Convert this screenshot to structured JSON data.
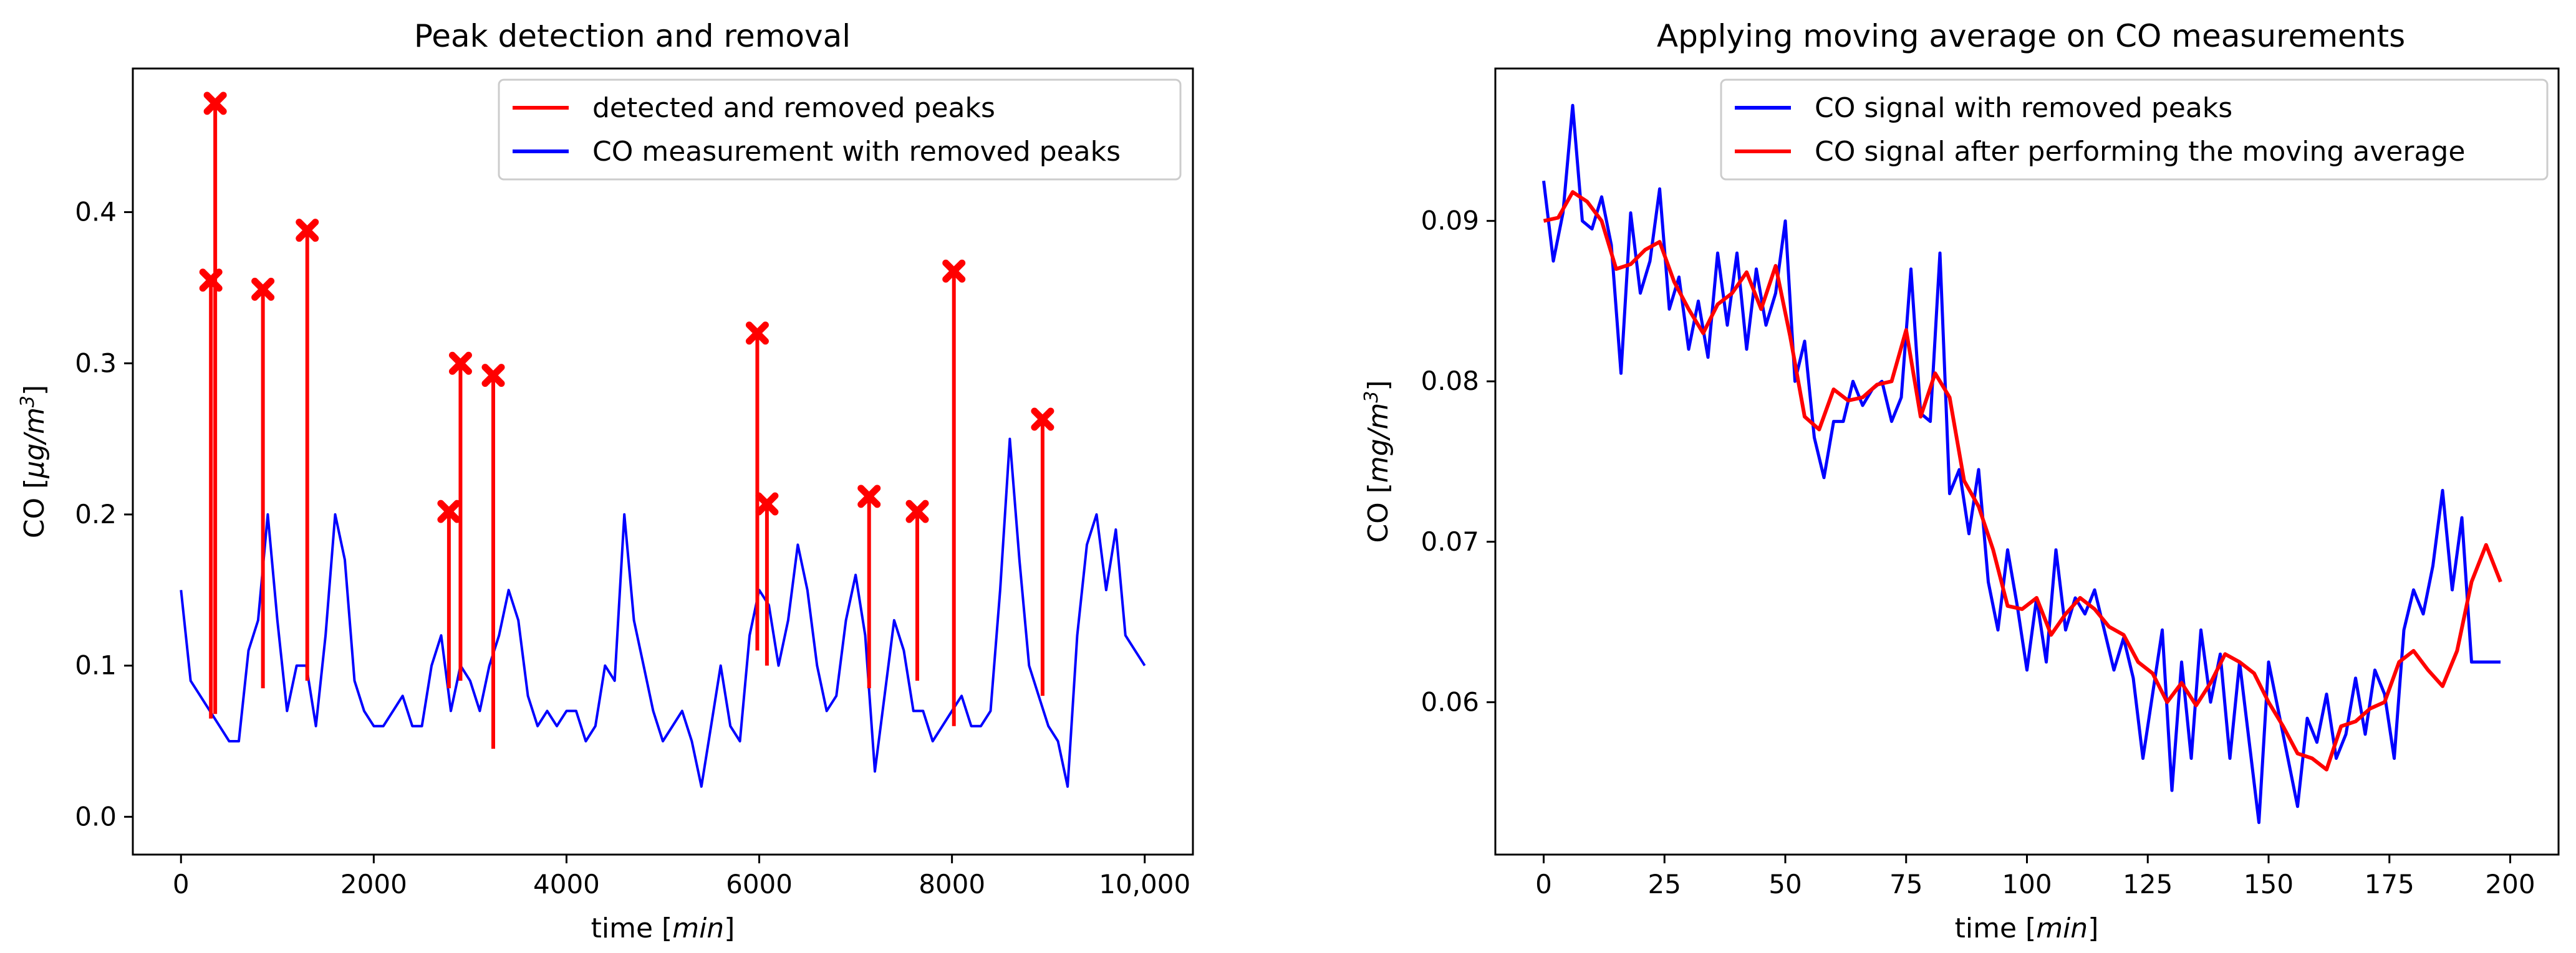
{
  "chart_data": [
    {
      "type": "line",
      "title": "Peak detection and removal",
      "xlabel": "time",
      "xlabel_unit": "min",
      "ylabel": "CO",
      "ylabel_unit": "μg/m",
      "ylabel_exp": "3",
      "xlim": [
        -500,
        10500
      ],
      "ylim": [
        -0.025,
        0.495
      ],
      "xticks": [
        0,
        2000,
        4000,
        6000,
        8000,
        10000
      ],
      "xtick_labels": [
        "0",
        "2000",
        "4000",
        "6000",
        "8000",
        "10,000"
      ],
      "yticks": [
        0.0,
        0.1,
        0.2,
        0.3,
        0.4
      ],
      "ytick_labels": [
        "0.0",
        "0.1",
        "0.2",
        "0.3",
        "0.4"
      ],
      "legend_position": "top-right",
      "colors": {
        "peaks": "#ff0000",
        "signal": "#0000ff"
      },
      "series": [
        {
          "name": "detected and removed peaks",
          "style": "vertical-lines-with-x-markers",
          "peaks": [
            {
              "x": 310,
              "base": 0.065,
              "y": 0.355
            },
            {
              "x": 355,
              "base": 0.068,
              "y": 0.472
            },
            {
              "x": 850,
              "base": 0.085,
              "y": 0.349
            },
            {
              "x": 1310,
              "base": 0.09,
              "y": 0.388
            },
            {
              "x": 2780,
              "base": 0.085,
              "y": 0.202
            },
            {
              "x": 2900,
              "base": 0.09,
              "y": 0.3
            },
            {
              "x": 3240,
              "base": 0.045,
              "y": 0.292
            },
            {
              "x": 5980,
              "base": 0.11,
              "y": 0.32
            },
            {
              "x": 6080,
              "base": 0.1,
              "y": 0.207
            },
            {
              "x": 7140,
              "base": 0.085,
              "y": 0.212
            },
            {
              "x": 7640,
              "base": 0.09,
              "y": 0.202
            },
            {
              "x": 8020,
              "base": 0.06,
              "y": 0.361
            },
            {
              "x": 8940,
              "base": 0.08,
              "y": 0.263
            }
          ]
        },
        {
          "name": "CO measurement with removed peaks",
          "style": "line",
          "x": [
            0,
            100,
            200,
            300,
            400,
            500,
            600,
            700,
            800,
            900,
            1000,
            1100,
            1200,
            1300,
            1400,
            1500,
            1600,
            1700,
            1800,
            1900,
            2000,
            2100,
            2200,
            2300,
            2400,
            2500,
            2600,
            2700,
            2800,
            2900,
            3000,
            3100,
            3200,
            3300,
            3400,
            3500,
            3600,
            3700,
            3800,
            3900,
            4000,
            4100,
            4200,
            4300,
            4400,
            4500,
            4600,
            4700,
            4800,
            4900,
            5000,
            5100,
            5200,
            5300,
            5400,
            5500,
            5600,
            5700,
            5800,
            5900,
            6000,
            6100,
            6200,
            6300,
            6400,
            6500,
            6600,
            6700,
            6800,
            6900,
            7000,
            7100,
            7200,
            7300,
            7400,
            7500,
            7600,
            7700,
            7800,
            7900,
            8000,
            8100,
            8200,
            8300,
            8400,
            8500,
            8600,
            8700,
            8800,
            8900,
            9000,
            9100,
            9200,
            9300,
            9400,
            9500,
            9600,
            9700,
            9800,
            9900,
            10000
          ],
          "y": [
            0.15,
            0.09,
            0.08,
            0.07,
            0.06,
            0.05,
            0.05,
            0.11,
            0.13,
            0.2,
            0.13,
            0.07,
            0.1,
            0.1,
            0.06,
            0.12,
            0.2,
            0.17,
            0.09,
            0.07,
            0.06,
            0.06,
            0.07,
            0.08,
            0.06,
            0.06,
            0.1,
            0.12,
            0.07,
            0.1,
            0.09,
            0.07,
            0.1,
            0.12,
            0.15,
            0.13,
            0.08,
            0.06,
            0.07,
            0.06,
            0.07,
            0.07,
            0.05,
            0.06,
            0.1,
            0.09,
            0.2,
            0.13,
            0.1,
            0.07,
            0.05,
            0.06,
            0.07,
            0.05,
            0.02,
            0.06,
            0.1,
            0.06,
            0.05,
            0.12,
            0.15,
            0.14,
            0.1,
            0.13,
            0.18,
            0.15,
            0.1,
            0.07,
            0.08,
            0.13,
            0.16,
            0.12,
            0.03,
            0.08,
            0.13,
            0.11,
            0.07,
            0.07,
            0.05,
            0.06,
            0.07,
            0.08,
            0.06,
            0.06,
            0.07,
            0.15,
            0.25,
            0.17,
            0.1,
            0.08,
            0.06,
            0.05,
            0.02,
            0.12,
            0.18,
            0.2,
            0.15,
            0.19,
            0.12,
            0.11,
            0.1
          ]
        }
      ]
    },
    {
      "type": "line",
      "title": "Applying moving average on CO measurements",
      "xlabel": "time",
      "xlabel_unit": "min",
      "ylabel": "CO",
      "ylabel_unit": "mg/m",
      "ylabel_exp": "3",
      "xlim": [
        -10,
        210
      ],
      "ylim": [
        0.0505,
        0.0995
      ],
      "xticks": [
        0,
        25,
        50,
        75,
        100,
        125,
        150,
        175,
        200
      ],
      "xtick_labels": [
        "0",
        "25",
        "50",
        "75",
        "100",
        "125",
        "150",
        "175",
        "200"
      ],
      "yticks": [
        0.06,
        0.07,
        0.08,
        0.09
      ],
      "ytick_labels": [
        "0.06",
        "0.07",
        "0.08",
        "0.09"
      ],
      "legend_position": "top-right",
      "colors": {
        "signal": "#0000ff",
        "average": "#ff0000"
      },
      "series": [
        {
          "name": "CO signal with removed peaks",
          "color": "#0000ff",
          "x": [
            0,
            2,
            4,
            6,
            8,
            10,
            12,
            14,
            16,
            18,
            20,
            22,
            24,
            26,
            28,
            30,
            32,
            34,
            36,
            38,
            40,
            42,
            44,
            46,
            48,
            50,
            52,
            54,
            56,
            58,
            60,
            62,
            64,
            66,
            68,
            70,
            72,
            74,
            76,
            78,
            80,
            82,
            84,
            86,
            88,
            90,
            92,
            94,
            96,
            98,
            100,
            102,
            104,
            106,
            108,
            110,
            112,
            114,
            116,
            118,
            120,
            122,
            124,
            126,
            128,
            130,
            132,
            134,
            136,
            138,
            140,
            142,
            144,
            146,
            148,
            150,
            152,
            154,
            156,
            158,
            160,
            162,
            164,
            166,
            168,
            170,
            172,
            174,
            176,
            178,
            180,
            182,
            184,
            186,
            188,
            190,
            192,
            194,
            196,
            198
          ],
          "y": [
            0.0925,
            0.0875,
            0.0905,
            0.0972,
            0.09,
            0.0895,
            0.0915,
            0.0885,
            0.0805,
            0.0905,
            0.0855,
            0.0875,
            0.092,
            0.0845,
            0.0865,
            0.082,
            0.085,
            0.0815,
            0.088,
            0.0835,
            0.088,
            0.082,
            0.087,
            0.0835,
            0.0855,
            0.09,
            0.08,
            0.0825,
            0.0765,
            0.074,
            0.0775,
            0.0775,
            0.08,
            0.0785,
            0.0795,
            0.08,
            0.0775,
            0.079,
            0.087,
            0.078,
            0.0775,
            0.088,
            0.073,
            0.0745,
            0.0705,
            0.0745,
            0.0675,
            0.0645,
            0.0695,
            0.066,
            0.062,
            0.0665,
            0.0625,
            0.0695,
            0.0645,
            0.0665,
            0.0655,
            0.067,
            0.0645,
            0.062,
            0.064,
            0.0615,
            0.0565,
            0.0605,
            0.0645,
            0.0545,
            0.0625,
            0.0565,
            0.0645,
            0.06,
            0.063,
            0.0565,
            0.0625,
            0.0575,
            0.0525,
            0.0625,
            0.0595,
            0.0565,
            0.0535,
            0.059,
            0.0575,
            0.0605,
            0.0565,
            0.058,
            0.0615,
            0.058,
            0.062,
            0.0605,
            0.0565,
            0.0645,
            0.067,
            0.0655,
            0.0685,
            0.0732,
            0.067,
            0.0715,
            0.0625,
            0.0625,
            0.0625,
            0.0625
          ]
        },
        {
          "name": "CO signal after performing the moving average",
          "color": "#ff0000",
          "x": [
            0,
            3,
            6,
            9,
            12,
            15,
            18,
            21,
            24,
            27,
            30,
            33,
            36,
            39,
            42,
            45,
            48,
            51,
            54,
            57,
            60,
            63,
            66,
            69,
            72,
            75,
            78,
            81,
            84,
            87,
            90,
            93,
            96,
            99,
            102,
            105,
            108,
            111,
            114,
            117,
            120,
            123,
            126,
            129,
            132,
            135,
            138,
            141,
            144,
            147,
            150,
            153,
            156,
            159,
            162,
            165,
            168,
            171,
            174,
            177,
            180,
            183,
            186,
            189,
            192,
            195,
            198
          ],
          "y": [
            0.09,
            0.0902,
            0.0918,
            0.0912,
            0.09,
            0.087,
            0.0873,
            0.0882,
            0.0887,
            0.0862,
            0.0845,
            0.083,
            0.0848,
            0.0855,
            0.0868,
            0.0845,
            0.0872,
            0.0828,
            0.0778,
            0.077,
            0.0795,
            0.0788,
            0.079,
            0.0798,
            0.08,
            0.0832,
            0.0778,
            0.0805,
            0.079,
            0.0738,
            0.0722,
            0.0695,
            0.066,
            0.0658,
            0.0665,
            0.0642,
            0.0655,
            0.0665,
            0.0658,
            0.0647,
            0.0642,
            0.0625,
            0.0618,
            0.06,
            0.0612,
            0.0598,
            0.0612,
            0.063,
            0.0625,
            0.0618,
            0.06,
            0.0585,
            0.0568,
            0.0565,
            0.0558,
            0.0585,
            0.0588,
            0.0596,
            0.06,
            0.0625,
            0.0632,
            0.062,
            0.061,
            0.0632,
            0.0675,
            0.0698,
            0.0675
          ]
        }
      ]
    }
  ]
}
